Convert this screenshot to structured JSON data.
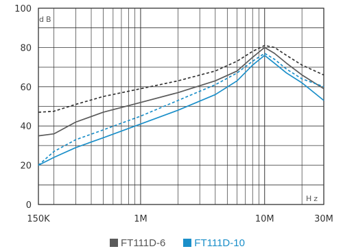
{
  "chart_data": {
    "type": "line",
    "x_scale": "log",
    "xlim": [
      150000,
      30000000
    ],
    "ylim": [
      0,
      100
    ],
    "ylabel": "dB",
    "xlabel": "Hz",
    "y_ticks": [
      0,
      20,
      40,
      60,
      80,
      100
    ],
    "x_ticks": [
      {
        "value": 150000,
        "label": "150K"
      },
      {
        "value": 1000000,
        "label": "1M"
      },
      {
        "value": 10000000,
        "label": "10M"
      },
      {
        "value": 30000000,
        "label": "30M"
      }
    ],
    "grid": true,
    "legend_placement": "bottom",
    "series": [
      {
        "name": "FT111D-6",
        "color": "#5a5a5a",
        "style": "solid",
        "x": [
          150000,
          200000,
          300000,
          500000,
          1000000,
          2000000,
          4000000,
          6000000,
          8000000,
          10000000,
          12000000,
          15000000,
          20000000,
          30000000
        ],
        "y": [
          35,
          36,
          42,
          47,
          52,
          57,
          63,
          68,
          75,
          80,
          77,
          72,
          66,
          59
        ]
      },
      {
        "name": "",
        "color": "#333333",
        "style": "dashed",
        "x": [
          150000,
          200000,
          300000,
          500000,
          1000000,
          2000000,
          4000000,
          6000000,
          8000000,
          10000000,
          12000000,
          15000000,
          20000000,
          30000000
        ],
        "y": [
          47,
          47.5,
          51,
          55,
          59,
          63,
          68,
          73,
          78,
          81,
          80,
          76,
          71,
          66
        ]
      },
      {
        "name": "FT111D-10",
        "color": "#1b8fc9",
        "style": "solid",
        "x": [
          150000,
          200000,
          300000,
          500000,
          1000000,
          2000000,
          4000000,
          6000000,
          8000000,
          10000000,
          12000000,
          15000000,
          20000000,
          30000000
        ],
        "y": [
          20,
          24,
          29,
          34,
          41,
          48,
          56,
          63,
          71,
          76,
          72,
          67,
          62,
          53
        ]
      },
      {
        "name": "",
        "color": "#1b8fc9",
        "style": "dashed",
        "x": [
          150000,
          200000,
          300000,
          500000,
          1000000,
          2000000,
          4000000,
          6000000,
          8000000,
          10000000,
          12000000,
          15000000,
          20000000,
          30000000
        ],
        "y": [
          20,
          27,
          33,
          38,
          45,
          53,
          61,
          67,
          73,
          77,
          74,
          69,
          64,
          60
        ]
      }
    ]
  }
}
